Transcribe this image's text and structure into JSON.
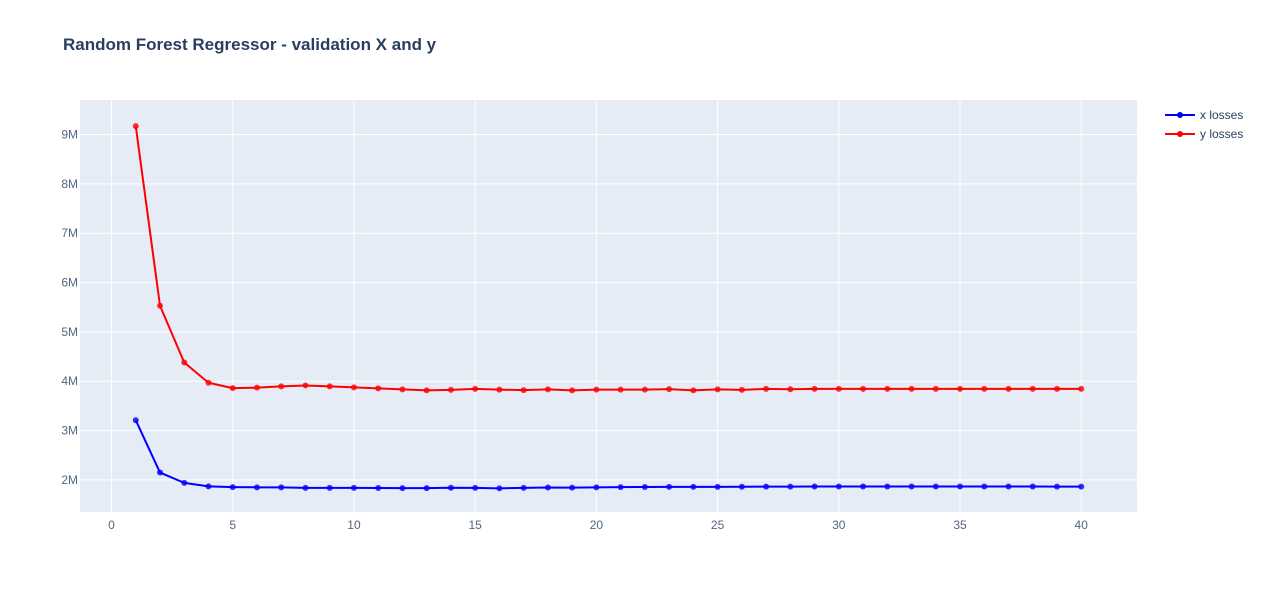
{
  "chart_data": {
    "type": "line",
    "title": "Random Forest Regressor - validation X and y",
    "xlabel": "",
    "ylabel": "",
    "xlim": [
      -1.3,
      42.3
    ],
    "ylim": [
      1350000,
      9700000
    ],
    "x_ticks": [
      0,
      5,
      10,
      15,
      20,
      25,
      30,
      35,
      40
    ],
    "y_ticks": [
      2000000,
      3000000,
      4000000,
      5000000,
      6000000,
      7000000,
      8000000,
      9000000
    ],
    "y_tick_labels": [
      "2M",
      "3M",
      "4M",
      "5M",
      "6M",
      "7M",
      "8M",
      "9M"
    ],
    "grid": true,
    "legend_position": "top-right",
    "x": [
      1,
      2,
      3,
      4,
      5,
      6,
      7,
      8,
      9,
      10,
      11,
      12,
      13,
      14,
      15,
      16,
      17,
      18,
      19,
      20,
      21,
      22,
      23,
      24,
      25,
      26,
      27,
      28,
      29,
      30,
      31,
      32,
      33,
      34,
      35,
      36,
      37,
      38,
      39,
      40
    ],
    "series": [
      {
        "name": "x losses",
        "color": "#0000ff",
        "values": [
          3210000,
          2150000,
          1940000,
          1870000,
          1855000,
          1850000,
          1850000,
          1840000,
          1838000,
          1838000,
          1836000,
          1834000,
          1834000,
          1842000,
          1838000,
          1830000,
          1838000,
          1847000,
          1845000,
          1850000,
          1853000,
          1857000,
          1860000,
          1860000,
          1860000,
          1862000,
          1864000,
          1864000,
          1866000,
          1868000,
          1868000,
          1868000,
          1868000,
          1866000,
          1866000,
          1866000,
          1866000,
          1866000,
          1864000,
          1864000
        ]
      },
      {
        "name": "y losses",
        "color": "#ff0000",
        "values": [
          9170000,
          5530000,
          4380000,
          3970000,
          3860000,
          3870000,
          3895000,
          3915000,
          3895000,
          3875000,
          3855000,
          3835000,
          3815000,
          3825000,
          3845000,
          3830000,
          3820000,
          3835000,
          3815000,
          3830000,
          3830000,
          3830000,
          3840000,
          3815000,
          3835000,
          3825000,
          3845000,
          3838000,
          3845000,
          3845000,
          3845000,
          3845000,
          3845000,
          3845000,
          3845000,
          3845000,
          3845000,
          3845000,
          3845000,
          3845000
        ]
      }
    ]
  }
}
